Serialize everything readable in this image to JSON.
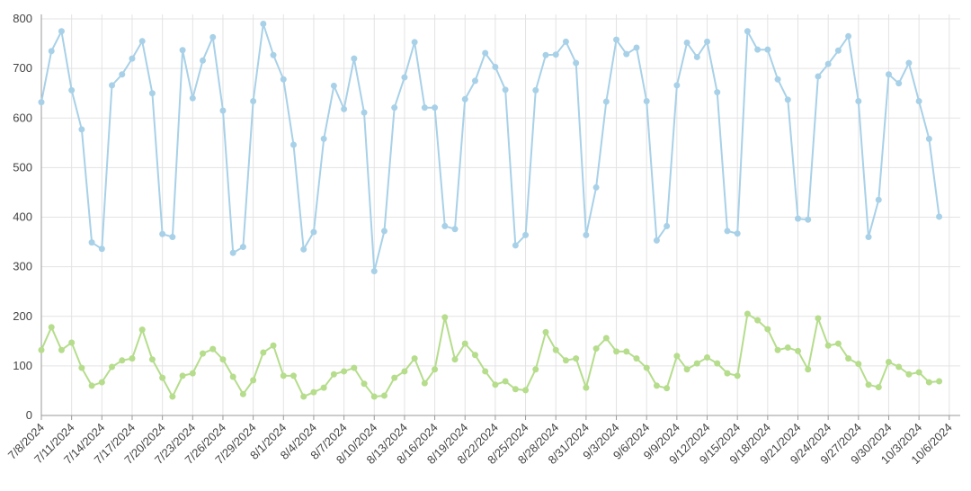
{
  "chart_data": {
    "type": "line",
    "categories": [
      "7/8/2024",
      null,
      null,
      "7/11/2024",
      null,
      null,
      "7/14/2024",
      null,
      null,
      "7/17/2024",
      null,
      null,
      "7/20/2024",
      null,
      null,
      "7/23/2024",
      null,
      null,
      "7/26/2024",
      null,
      null,
      "7/29/2024",
      null,
      null,
      "8/1/2024",
      null,
      null,
      "8/4/2024",
      null,
      null,
      "8/7/2024",
      null,
      null,
      "8/10/2024",
      null,
      null,
      "8/13/2024",
      null,
      null,
      "8/16/2024",
      null,
      null,
      "8/19/2024",
      null,
      null,
      "8/22/2024",
      null,
      null,
      "8/25/2024",
      null,
      null,
      "8/28/2024",
      null,
      null,
      "8/31/2024",
      null,
      null,
      "9/3/2024",
      null,
      null,
      "9/6/2024",
      null,
      null,
      "9/9/2024",
      null,
      null,
      "9/12/2024",
      null,
      null,
      "9/15/2024",
      null,
      null,
      "9/18/2024",
      null,
      null,
      "9/21/2024",
      null,
      null,
      "9/24/2024",
      null,
      null,
      "9/27/2024",
      null,
      null,
      "9/30/2024",
      null,
      null,
      "10/3/2024",
      null,
      null,
      "10/6/2024"
    ],
    "series": [
      {
        "color": "#a8d1e8",
        "values": [
          632,
          735,
          775,
          656,
          577,
          349,
          336,
          666,
          688,
          720,
          755,
          650,
          366,
          360,
          737,
          640,
          716,
          763,
          615,
          328,
          340,
          634,
          790,
          727,
          678,
          546,
          335,
          370,
          558,
          665,
          618,
          720,
          611,
          291,
          372,
          621,
          682,
          753,
          621,
          621,
          382,
          376,
          638,
          675,
          731,
          703,
          657,
          343,
          364,
          656,
          727,
          728,
          754,
          711,
          364,
          460,
          633,
          758,
          729,
          742,
          634,
          353,
          382,
          666,
          752,
          723,
          754,
          652,
          372,
          367,
          775,
          738,
          738,
          678,
          637,
          397,
          395,
          684,
          709,
          736,
          765,
          634,
          360,
          435,
          688,
          670,
          711,
          634,
          558,
          401,
          null
        ]
      },
      {
        "color": "#b5dd8c",
        "values": [
          132,
          178,
          132,
          147,
          96,
          60,
          67,
          98,
          111,
          115,
          173,
          113,
          76,
          38,
          80,
          85,
          125,
          134,
          113,
          78,
          43,
          71,
          127,
          141,
          80,
          80,
          38,
          47,
          56,
          83,
          89,
          96,
          64,
          38,
          40,
          76,
          89,
          115,
          65,
          93,
          198,
          113,
          145,
          122,
          89,
          62,
          69,
          53,
          51,
          93,
          168,
          132,
          111,
          115,
          56,
          135,
          156,
          129,
          129,
          115,
          96,
          60,
          55,
          120,
          93,
          105,
          117,
          105,
          85,
          80,
          205,
          192,
          174,
          132,
          137,
          130,
          93,
          196,
          141,
          145,
          115,
          104,
          62,
          57,
          108,
          98,
          83,
          87,
          67,
          69,
          null
        ]
      }
    ],
    "ylim": [
      0,
      800
    ],
    "yticks": [
      0,
      100,
      200,
      300,
      400,
      500,
      600,
      700,
      800
    ],
    "grid": true
  }
}
